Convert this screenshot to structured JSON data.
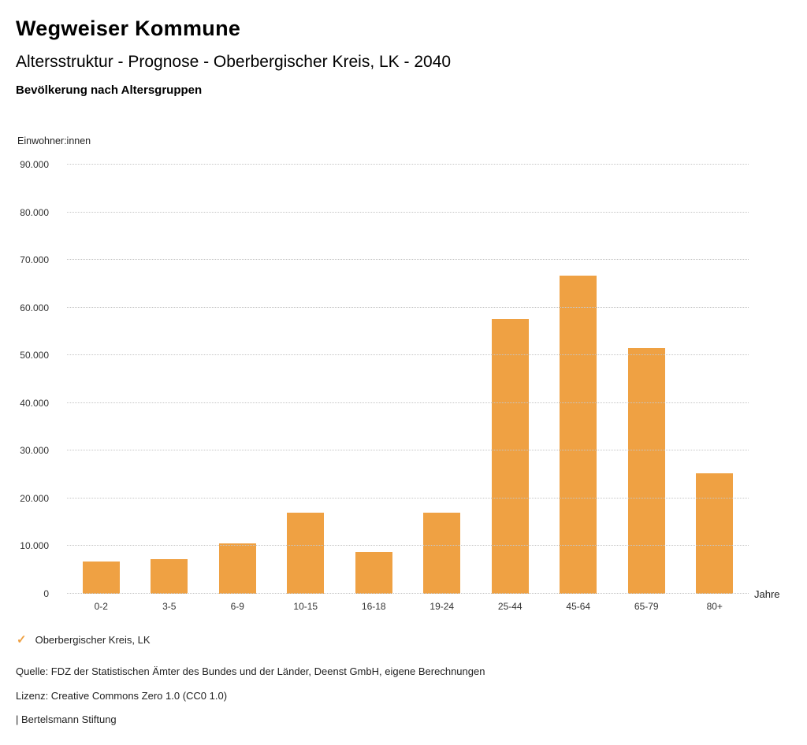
{
  "header": {
    "title": "Wegweiser Kommune",
    "subtitle": "Altersstruktur - Prognose - Oberbergischer Kreis, LK - 2040",
    "section": "Bevölkerung nach Altersgruppen"
  },
  "chart_data": {
    "type": "bar",
    "title": "Bevölkerung nach Altersgruppen",
    "ylabel": "Einwohner:innen",
    "xlabel": "Jahre",
    "categories": [
      "0-2",
      "3-5",
      "6-9",
      "10-15",
      "16-18",
      "19-24",
      "25-44",
      "45-64",
      "65-79",
      "80+"
    ],
    "series": [
      {
        "name": "Oberbergischer Kreis, LK",
        "values": [
          6800,
          7300,
          10500,
          17000,
          8800,
          17000,
          57700,
          66800,
          51500,
          25300
        ]
      }
    ],
    "ylim": [
      0,
      90000
    ],
    "ytick_step": 10000,
    "ytick_labels": [
      "0",
      "10.000",
      "20.000",
      "30.000",
      "40.000",
      "50.000",
      "60.000",
      "70.000",
      "80.000",
      "90.000"
    ],
    "grid": "dotted horizontal",
    "legend_position": "bottom-left",
    "bar_color": "#efa143"
  },
  "legend": {
    "check_icon": "✓",
    "check_color": "#efa143"
  },
  "footer": {
    "source": "Quelle: FDZ der Statistischen Ämter des Bundes und der Länder, Deenst GmbH, eigene Berechnungen",
    "license": "Lizenz: Creative Commons Zero 1.0 (CC0 1.0)",
    "attribution": "| Bertelsmann Stiftung"
  }
}
